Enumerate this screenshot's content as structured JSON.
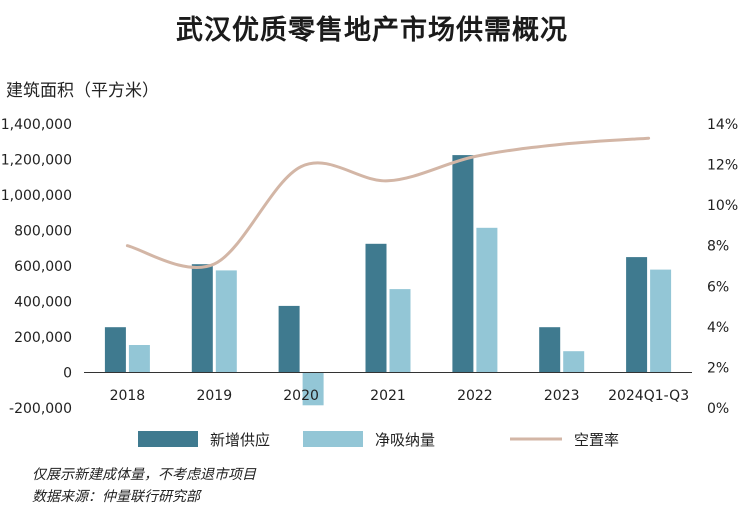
{
  "title": "武汉优质零售地产市场供需概况",
  "chart_data": {
    "type": "bar",
    "title": "武汉优质零售地产市场供需概况",
    "ylabel": "建筑面积（平方米）",
    "categories": [
      "2018",
      "2019",
      "2020",
      "2021",
      "2022",
      "2023",
      "2024Q1-Q3"
    ],
    "series": [
      {
        "name": "新增供应",
        "type": "bar",
        "axis": "left",
        "color": "#3f7a8f",
        "values": [
          255000,
          610000,
          375000,
          725000,
          1225000,
          255000,
          650000
        ]
      },
      {
        "name": "净吸纳量",
        "type": "bar",
        "axis": "left",
        "color": "#93c6d6",
        "values": [
          155000,
          575000,
          -185000,
          470000,
          815000,
          120000,
          580000
        ]
      },
      {
        "name": "空置率",
        "type": "line",
        "axis": "right",
        "color": "#d3b6a6",
        "values": [
          8.0,
          7.1,
          11.9,
          11.2,
          12.4,
          13.0,
          13.3
        ]
      }
    ],
    "ylim": [
      -200000,
      1400000
    ],
    "yticks": [
      -200000,
      0,
      200000,
      400000,
      600000,
      800000,
      1000000,
      1200000,
      1400000
    ],
    "ytick_labels": [
      "-200,000",
      "0",
      "200,000",
      "400,000",
      "600,000",
      "800,000",
      "1,000,000",
      "1,200,000",
      "1,400,000"
    ],
    "y2lim": [
      0,
      14
    ],
    "y2ticks": [
      0,
      2,
      4,
      6,
      8,
      10,
      12,
      14
    ],
    "y2tick_labels": [
      "0%",
      "2%",
      "4%",
      "6%",
      "8%",
      "10%",
      "12%",
      "14%"
    ],
    "grid": false,
    "legend_position": "bottom"
  },
  "notes": [
    "仅展示新建成体量，不考虑退市项目",
    "数据来源：仲量联行研究部"
  ]
}
